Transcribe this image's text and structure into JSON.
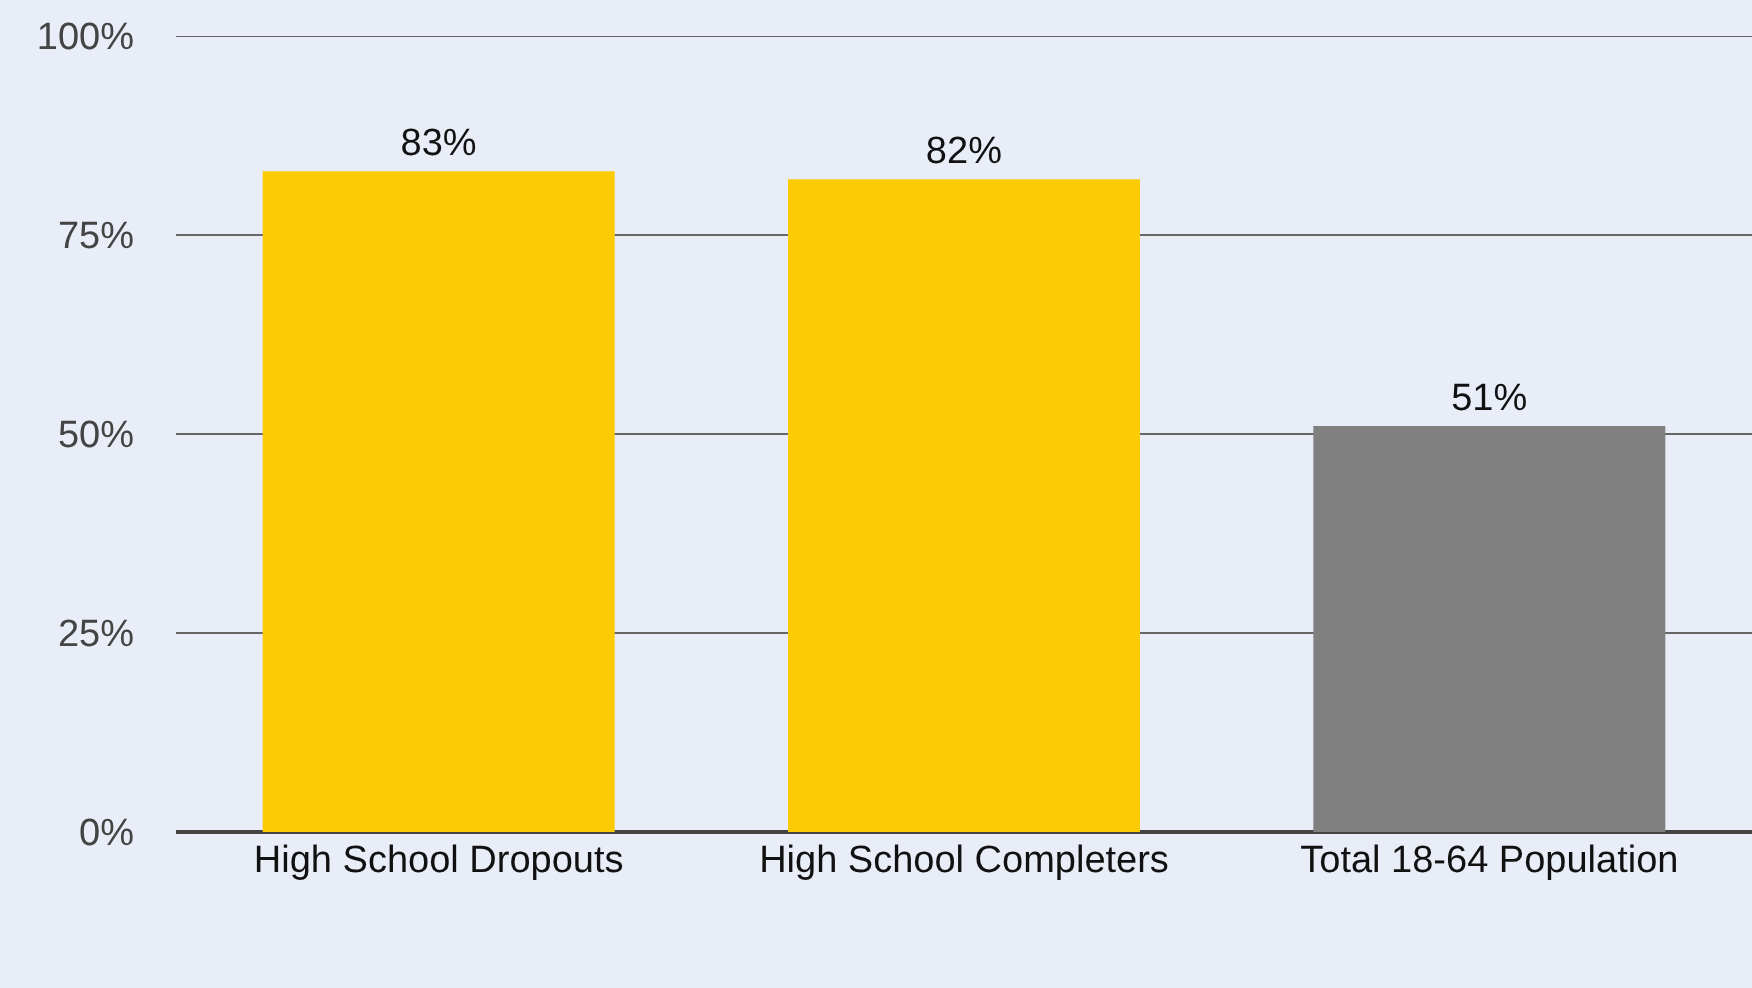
{
  "chart_data": {
    "type": "bar",
    "categories": [
      "High School Dropouts",
      "High School Completers",
      "Total 18-64 Population"
    ],
    "values": [
      83,
      82,
      51
    ],
    "colors": [
      "#fccb06",
      "#fccb06",
      "#808080"
    ],
    "value_labels": [
      "83%",
      "82%",
      "51%"
    ],
    "ylim": [
      0,
      100
    ],
    "yticks": [
      {
        "value": 0,
        "label": "0%"
      },
      {
        "value": 25,
        "label": "25%"
      },
      {
        "value": 50,
        "label": "50%"
      },
      {
        "value": 75,
        "label": "75%"
      },
      {
        "value": 100,
        "label": "100%"
      }
    ],
    "grid": "y"
  }
}
